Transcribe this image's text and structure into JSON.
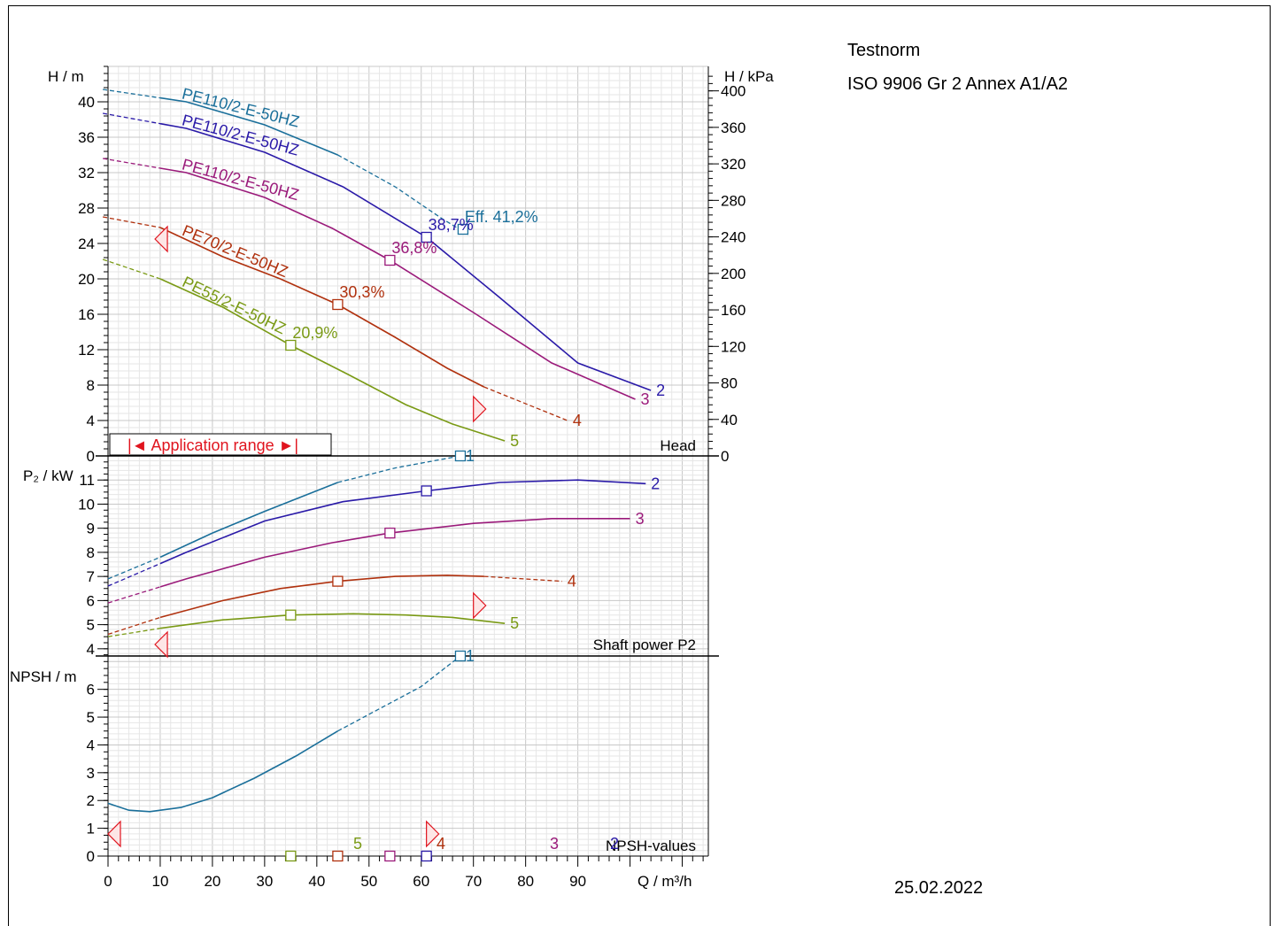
{
  "norm": {
    "title": "Testnorm",
    "name": "ISO 9906 Gr 2 Annex A1/A2"
  },
  "date": "25.02.2022",
  "chart_data": [
    {
      "type": "line",
      "panel": "head",
      "label": "Head",
      "ylabel_left": "H / m",
      "ylabel_right": "H / kPa",
      "xlabel": "Q / m³/h",
      "xlim": [
        0,
        115
      ],
      "ylim": [
        0,
        44
      ],
      "yticks": [
        0,
        4,
        8,
        12,
        16,
        20,
        24,
        28,
        32,
        36,
        40
      ],
      "yticks_right": [
        0,
        40,
        80,
        120,
        160,
        200,
        240,
        280,
        320,
        360,
        400
      ],
      "application_range_label": "|◄ Application range ►|",
      "series": [
        {
          "id": "1",
          "name": "PE110/2-E-50HZ",
          "color": "#1a6f9a",
          "points": [
            [
              -1,
              41.4
            ],
            [
              15,
              40.0
            ],
            [
              30,
              37.4
            ],
            [
              44,
              34.0
            ],
            [
              55,
              30.4
            ],
            [
              64,
              26.8
            ],
            [
              69,
              25.0
            ]
          ],
          "solid_range": [
            10,
            44
          ],
          "op_point": [
            68,
            25.6
          ],
          "op_label": "Eff.  41,2%"
        },
        {
          "id": "2",
          "name": "PE110/2-E-50HZ",
          "color": "#2a1aa8",
          "points": [
            [
              -1,
              38.7
            ],
            [
              15,
              37.0
            ],
            [
              30,
              34.3
            ],
            [
              45,
              30.4
            ],
            [
              61,
              24.7
            ],
            [
              75,
              17.9
            ],
            [
              90,
              10.5
            ],
            [
              104,
              7.4
            ]
          ],
          "solid_range": [
            10,
            104
          ],
          "end_label": "2",
          "op_point": [
            61,
            24.7
          ],
          "op_label": "38,7%"
        },
        {
          "id": "3",
          "name": "PE110/2-E-50HZ",
          "color": "#9a1a7a",
          "points": [
            [
              -1,
              33.6
            ],
            [
              15,
              32.0
            ],
            [
              30,
              29.2
            ],
            [
              43,
              25.7
            ],
            [
              54,
              22.1
            ],
            [
              70,
              16.2
            ],
            [
              85,
              10.5
            ],
            [
              101,
              6.4
            ]
          ],
          "solid_range": [
            10,
            101
          ],
          "end_label": "3",
          "op_point": [
            54,
            22.1
          ],
          "op_label": "36,8%"
        },
        {
          "id": "4",
          "name": "PE70/2-E-50HZ",
          "color": "#b0310e",
          "points": [
            [
              -1,
              27.0
            ],
            [
              10,
              25.8
            ],
            [
              22,
              22.5
            ],
            [
              33,
              20.0
            ],
            [
              44,
              17.1
            ],
            [
              55,
              13.4
            ],
            [
              65,
              9.9
            ],
            [
              72,
              7.8
            ],
            [
              88,
              4.0
            ]
          ],
          "solid_range": [
            10,
            72
          ],
          "end_label": "4",
          "op_point": [
            44,
            17.1
          ],
          "op_label": "30,3%"
        },
        {
          "id": "5",
          "name": "PE55/2-E-50HZ",
          "color": "#7a9a15",
          "points": [
            [
              -1,
              22.2
            ],
            [
              10,
              20.0
            ],
            [
              22,
              16.8
            ],
            [
              35,
              12.5
            ],
            [
              46,
              9.2
            ],
            [
              57,
              5.8
            ],
            [
              66,
              3.6
            ],
            [
              76,
              1.7
            ]
          ],
          "solid_range": [
            10,
            76
          ],
          "end_label": "5",
          "op_point": [
            35,
            12.5
          ],
          "op_label": "20,9%"
        }
      ]
    },
    {
      "type": "line",
      "panel": "power",
      "label": "Shaft power P2",
      "ylabel": "P₂ / kW",
      "xlim": [
        0,
        115
      ],
      "ylim": [
        3.7,
        12.0
      ],
      "yticks": [
        4,
        5,
        6,
        7,
        8,
        9,
        10,
        11
      ],
      "series": [
        {
          "id": "1",
          "color": "#1a6f9a",
          "end_label": "1",
          "points": [
            [
              0,
              6.9
            ],
            [
              10,
              7.8
            ],
            [
              20,
              8.8
            ],
            [
              30,
              9.7
            ],
            [
              44,
              10.9
            ],
            [
              55,
              11.5
            ],
            [
              67.5,
              12.0
            ]
          ],
          "solid_range": [
            10,
            44
          ],
          "op_point": [
            67.5,
            12.0
          ]
        },
        {
          "id": "2",
          "color": "#2a1aa8",
          "end_label": "2",
          "points": [
            [
              0,
              6.6
            ],
            [
              15,
              8.0
            ],
            [
              30,
              9.3
            ],
            [
              45,
              10.1
            ],
            [
              61,
              10.55
            ],
            [
              75,
              10.9
            ],
            [
              90,
              11.0
            ],
            [
              103,
              10.85
            ]
          ],
          "solid_range": [
            10,
            103
          ],
          "op_point": [
            61,
            10.55
          ]
        },
        {
          "id": "3",
          "color": "#9a1a7a",
          "end_label": "3",
          "points": [
            [
              0,
              5.9
            ],
            [
              15,
              6.9
            ],
            [
              30,
              7.8
            ],
            [
              43,
              8.4
            ],
            [
              54,
              8.8
            ],
            [
              70,
              9.2
            ],
            [
              85,
              9.4
            ],
            [
              100,
              9.4
            ]
          ],
          "solid_range": [
            10,
            100
          ],
          "op_point": [
            54,
            8.8
          ]
        },
        {
          "id": "4",
          "color": "#b0310e",
          "end_label": "4",
          "points": [
            [
              0,
              4.6
            ],
            [
              10,
              5.3
            ],
            [
              22,
              6.0
            ],
            [
              33,
              6.5
            ],
            [
              44,
              6.8
            ],
            [
              55,
              7.0
            ],
            [
              65,
              7.05
            ],
            [
              72,
              7.0
            ],
            [
              87,
              6.8
            ]
          ],
          "solid_range": [
            10,
            72
          ],
          "op_point": [
            44,
            6.8
          ]
        },
        {
          "id": "5",
          "color": "#7a9a15",
          "end_label": "5",
          "points": [
            [
              0,
              4.5
            ],
            [
              10,
              4.85
            ],
            [
              22,
              5.2
            ],
            [
              35,
              5.4
            ],
            [
              47,
              5.45
            ],
            [
              57,
              5.4
            ],
            [
              66,
              5.3
            ],
            [
              76,
              5.05
            ]
          ],
          "solid_range": [
            10,
            76
          ],
          "op_point": [
            35,
            5.4
          ]
        }
      ]
    },
    {
      "type": "line",
      "panel": "npsh",
      "label": "NPSH-values",
      "ylabel": "NPSH / m",
      "xlabel": "Q / m³/h",
      "xlim": [
        0,
        115
      ],
      "ylim": [
        0,
        7.2
      ],
      "yticks": [
        0,
        1,
        2,
        3,
        4,
        5,
        6
      ],
      "xticks": [
        0,
        10,
        20,
        30,
        40,
        50,
        60,
        70,
        80,
        90
      ],
      "series": [
        {
          "id": "1",
          "color": "#1a6f9a",
          "end_label": "1",
          "points": [
            [
              0,
              1.9
            ],
            [
              4,
              1.65
            ],
            [
              8,
              1.6
            ],
            [
              14,
              1.75
            ],
            [
              20,
              2.1
            ],
            [
              28,
              2.8
            ],
            [
              36,
              3.6
            ],
            [
              44,
              4.5
            ],
            [
              52,
              5.3
            ],
            [
              60,
              6.1
            ],
            [
              67.5,
              7.2
            ]
          ],
          "solid_range": [
            0,
            44
          ],
          "op_point": [
            67.5,
            7.2
          ]
        }
      ],
      "zero_markers": [
        {
          "id": "5",
          "x": 35,
          "label": "5",
          "color": "#7a9a15"
        },
        {
          "id": "4",
          "x": 44,
          "label": "4",
          "color": "#b0310e"
        },
        {
          "id": "3",
          "x": 54,
          "label": "3",
          "color": "#9a1a7a"
        },
        {
          "id": "2",
          "x": 61,
          "label": "2",
          "color": "#2a1aa8"
        }
      ]
    }
  ]
}
